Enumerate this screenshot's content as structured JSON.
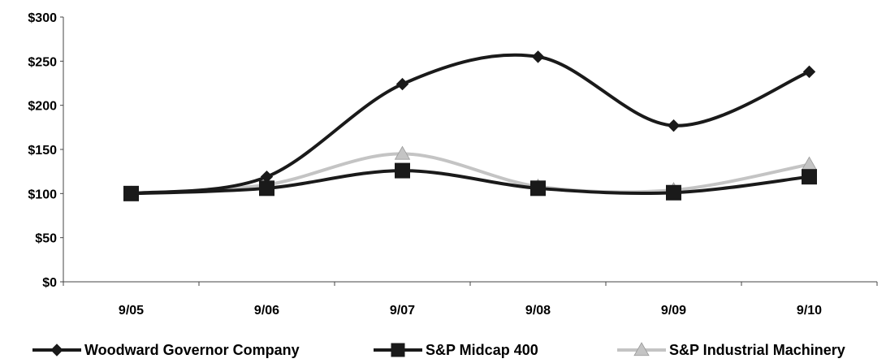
{
  "chart_data": {
    "type": "line",
    "categories": [
      "9/05",
      "9/06",
      "9/07",
      "9/08",
      "9/09",
      "9/10"
    ],
    "ylim": [
      0,
      300
    ],
    "yticks": [
      0,
      50,
      100,
      150,
      200,
      250,
      300
    ],
    "ytick_labels": [
      "$0",
      "$50",
      "$100",
      "$150",
      "$200",
      "$250",
      "$300"
    ],
    "grid": false,
    "legend_position": "bottom",
    "series": [
      {
        "name": "Woodward Governor Company",
        "values": [
          100,
          119,
          224,
          255,
          177,
          238
        ],
        "color": "#1a1a1a",
        "marker": "diamond"
      },
      {
        "name": "S&P Midcap 400",
        "values": [
          100,
          106,
          126,
          106,
          101,
          119
        ],
        "color": "#1a1a1a",
        "marker": "square"
      },
      {
        "name": "S&P Industrial Machinery",
        "values": [
          100,
          110,
          145,
          108,
          104,
          133
        ],
        "color": "#c4c4c4",
        "marker": "triangle"
      }
    ]
  }
}
